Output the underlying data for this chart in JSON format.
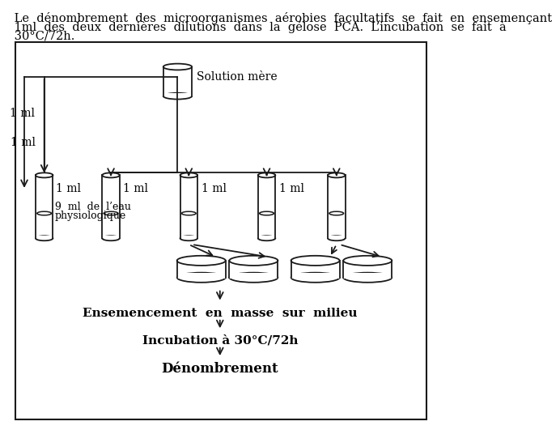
{
  "text_intro_line1": " Le  dénombrement  des  microorganismes  aérobies  facultatifs  se  fait  en  ensemençant",
  "text_intro_line2": " 1ml  des  deux  dernières  dilutions  dans  la  gélose  PCA.  L’incubation  se  fait  à",
  "text_intro_line3": " 30°C/72h.",
  "label_solution_mere": "Solution mère",
  "label_1ml_left": "1 ml",
  "label_1ml_1": "1 ml",
  "label_1ml_2": "1 ml",
  "label_1ml_3": "1 ml",
  "label_1ml_4": "1 ml",
  "label_9ml": "9  ml  de  l’eau",
  "label_physiologique": "physiologique",
  "label_ensemencement": "Ensemencement  en  masse  sur  milieu",
  "label_incubation": "Incubation à 30°C/72h",
  "label_denombrement": "Dénombrement",
  "bg_color": "#ffffff",
  "line_color": "#1a1a1a",
  "font_size_intro": 10.5,
  "font_size_label": 10,
  "font_size_bold": 11,
  "font_size_denom": 12
}
